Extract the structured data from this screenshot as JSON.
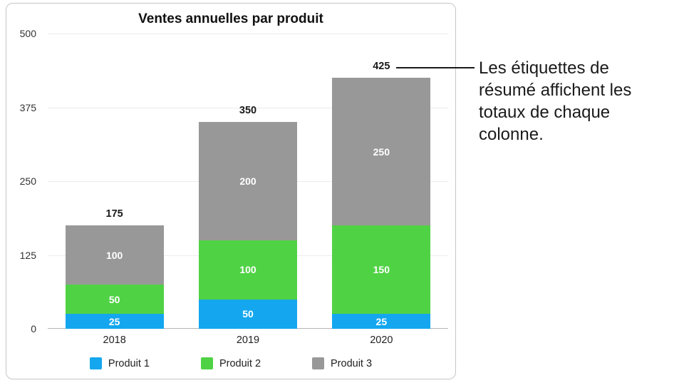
{
  "chart_data": {
    "type": "bar",
    "stacked": true,
    "title": "Ventes annuelles par produit",
    "categories": [
      "2018",
      "2019",
      "2020"
    ],
    "series": [
      {
        "name": "Produit 1",
        "color": "#14a7ef",
        "values": [
          25,
          50,
          25
        ]
      },
      {
        "name": "Produit 2",
        "color": "#50d245",
        "values": [
          50,
          100,
          150
        ]
      },
      {
        "name": "Produit 3",
        "color": "#989898",
        "values": [
          100,
          200,
          250
        ]
      }
    ],
    "totals": [
      175,
      350,
      425
    ],
    "y_ticks": [
      0,
      125,
      250,
      375,
      500
    ],
    "ylim": [
      0,
      500
    ],
    "grid": true,
    "legend_position": "bottom"
  },
  "callout": {
    "text": "Les étiquettes de résumé affichent les totaux de chaque colonne.",
    "lines": [
      "Les étiquettes de",
      "résumé affichent les",
      "totaux de chaque",
      "colonne."
    ]
  }
}
